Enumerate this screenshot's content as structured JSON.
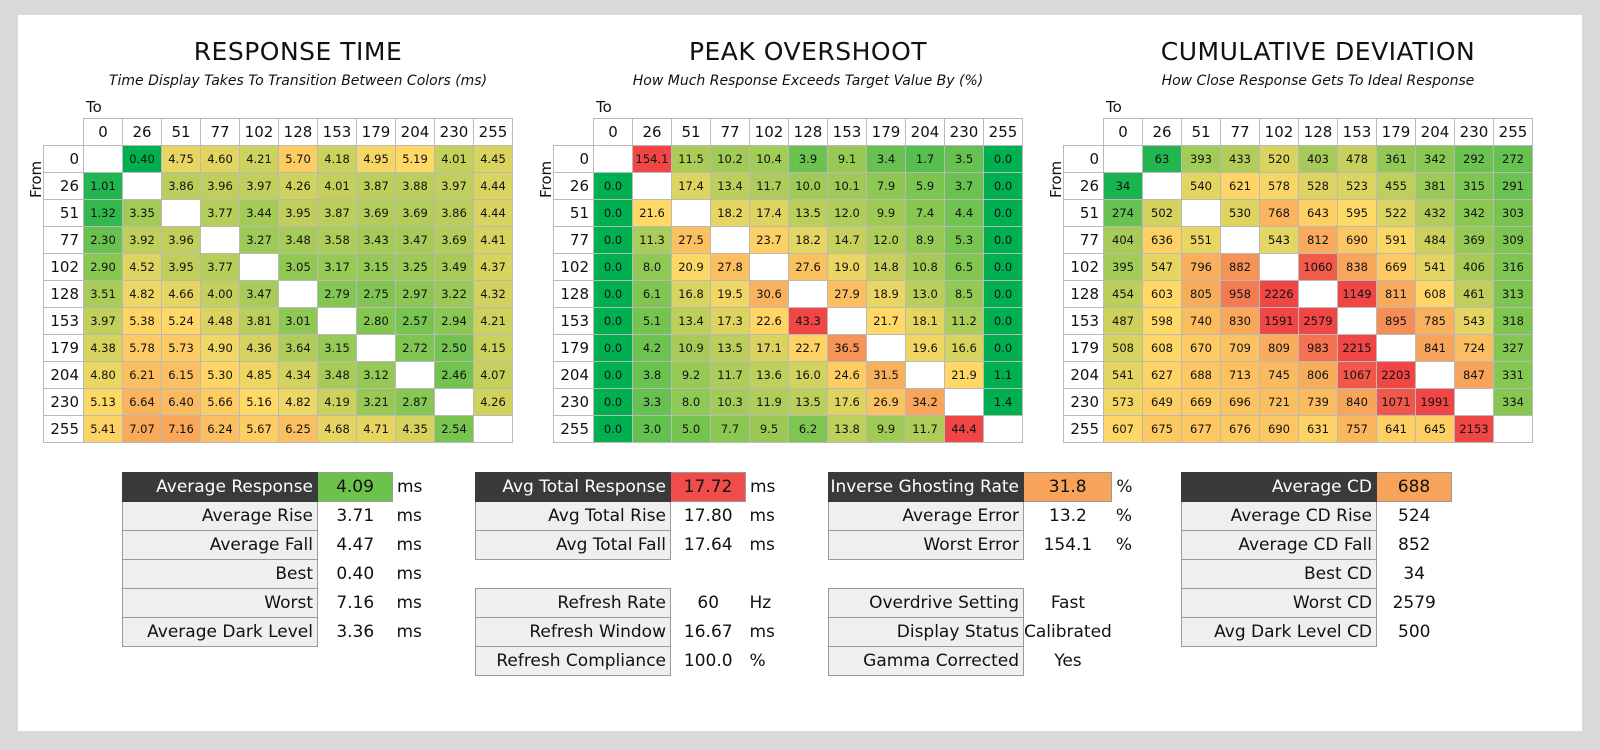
{
  "panels": [
    {
      "title": "RESPONSE TIME",
      "subtitle": "Time Display Takes To Transition Between Colors (ms)",
      "to_label": "To",
      "from_label": "From",
      "scale": "response",
      "lo": 0.4,
      "hi": 7.16,
      "levels": [
        "0",
        "26",
        "51",
        "77",
        "102",
        "128",
        "153",
        "179",
        "204",
        "230",
        "255"
      ],
      "rows": [
        [
          "",
          "0.40",
          "4.75",
          "4.60",
          "4.21",
          "5.70",
          "4.18",
          "4.95",
          "5.19",
          "4.01",
          "4.45"
        ],
        [
          "1.01",
          "",
          "3.86",
          "3.96",
          "3.97",
          "4.26",
          "4.01",
          "3.87",
          "3.88",
          "3.97",
          "4.44"
        ],
        [
          "1.32",
          "3.35",
          "",
          "3.77",
          "3.44",
          "3.95",
          "3.87",
          "3.69",
          "3.69",
          "3.86",
          "4.44"
        ],
        [
          "2.30",
          "3.92",
          "3.96",
          "",
          "3.27",
          "3.48",
          "3.58",
          "3.43",
          "3.47",
          "3.69",
          "4.41"
        ],
        [
          "2.90",
          "4.52",
          "3.95",
          "3.77",
          "",
          "3.05",
          "3.17",
          "3.15",
          "3.25",
          "3.49",
          "4.37"
        ],
        [
          "3.51",
          "4.82",
          "4.66",
          "4.00",
          "3.47",
          "",
          "2.79",
          "2.75",
          "2.97",
          "3.22",
          "4.32"
        ],
        [
          "3.97",
          "5.38",
          "5.24",
          "4.48",
          "3.81",
          "3.01",
          "",
          "2.80",
          "2.57",
          "2.94",
          "4.21"
        ],
        [
          "4.38",
          "5.78",
          "5.73",
          "4.90",
          "4.36",
          "3.64",
          "3.15",
          "",
          "2.72",
          "2.50",
          "4.15"
        ],
        [
          "4.80",
          "6.21",
          "6.15",
          "5.30",
          "4.85",
          "4.34",
          "3.48",
          "3.12",
          "",
          "2.46",
          "4.07"
        ],
        [
          "5.13",
          "6.64",
          "6.40",
          "5.66",
          "5.16",
          "4.82",
          "4.19",
          "3.21",
          "2.87",
          "",
          "4.26"
        ],
        [
          "5.41",
          "7.07",
          "7.16",
          "6.24",
          "5.67",
          "6.25",
          "4.68",
          "4.71",
          "4.35",
          "2.54",
          ""
        ]
      ]
    },
    {
      "title": "PEAK OVERSHOOT",
      "subtitle": "How Much Response Exceeds Target Value By (%)",
      "to_label": "To",
      "from_label": "From",
      "scale": "overshoot",
      "lo": 0,
      "hi": 44.4,
      "levels": [
        "0",
        "26",
        "51",
        "77",
        "102",
        "128",
        "153",
        "179",
        "204",
        "230",
        "255"
      ],
      "rows": [
        [
          "",
          "154.1",
          "11.5",
          "10.2",
          "10.4",
          "3.9",
          "9.1",
          "3.4",
          "1.7",
          "3.5",
          "0.0"
        ],
        [
          "0.0",
          "",
          "17.4",
          "13.4",
          "11.7",
          "10.0",
          "10.1",
          "7.9",
          "5.9",
          "3.7",
          "0.0"
        ],
        [
          "0.0",
          "21.6",
          "",
          "18.2",
          "17.4",
          "13.5",
          "12.0",
          "9.9",
          "7.4",
          "4.4",
          "0.0"
        ],
        [
          "0.0",
          "11.3",
          "27.5",
          "",
          "23.7",
          "18.2",
          "14.7",
          "12.0",
          "8.9",
          "5.3",
          "0.0"
        ],
        [
          "0.0",
          "8.0",
          "20.9",
          "27.8",
          "",
          "27.6",
          "19.0",
          "14.8",
          "10.8",
          "6.5",
          "0.0"
        ],
        [
          "0.0",
          "6.1",
          "16.8",
          "19.5",
          "30.6",
          "",
          "27.9",
          "18.9",
          "13.0",
          "8.5",
          "0.0"
        ],
        [
          "0.0",
          "5.1",
          "13.4",
          "17.3",
          "22.6",
          "43.3",
          "",
          "21.7",
          "18.1",
          "11.2",
          "0.0"
        ],
        [
          "0.0",
          "4.2",
          "10.9",
          "13.5",
          "17.1",
          "22.7",
          "36.5",
          "",
          "19.6",
          "16.6",
          "0.0"
        ],
        [
          "0.0",
          "3.8",
          "9.2",
          "11.7",
          "13.6",
          "16.0",
          "24.6",
          "31.5",
          "",
          "21.9",
          "1.1"
        ],
        [
          "0.0",
          "3.3",
          "8.0",
          "10.3",
          "11.9",
          "13.5",
          "17.6",
          "26.9",
          "34.2",
          "",
          "1.4"
        ],
        [
          "0.0",
          "3.0",
          "5.0",
          "7.7",
          "9.5",
          "6.2",
          "13.8",
          "9.9",
          "11.7",
          "44.4",
          ""
        ]
      ]
    },
    {
      "title": "CUMULATIVE DEVIATION",
      "subtitle": "How Close Response Gets To Ideal Response",
      "to_label": "To",
      "from_label": "From",
      "scale": "cd",
      "lo": 34,
      "hi": 2579,
      "levels": [
        "0",
        "26",
        "51",
        "77",
        "102",
        "128",
        "153",
        "179",
        "204",
        "230",
        "255"
      ],
      "rows": [
        [
          "",
          "63",
          "393",
          "433",
          "520",
          "403",
          "478",
          "361",
          "342",
          "292",
          "272"
        ],
        [
          "34",
          "",
          "540",
          "621",
          "578",
          "528",
          "523",
          "455",
          "381",
          "315",
          "291"
        ],
        [
          "274",
          "502",
          "",
          "530",
          "768",
          "643",
          "595",
          "522",
          "432",
          "342",
          "303"
        ],
        [
          "404",
          "636",
          "551",
          "",
          "543",
          "812",
          "690",
          "591",
          "484",
          "369",
          "309"
        ],
        [
          "395",
          "547",
          "796",
          "882",
          "",
          "1060",
          "838",
          "669",
          "541",
          "406",
          "316"
        ],
        [
          "454",
          "603",
          "805",
          "958",
          "2226",
          "",
          "1149",
          "811",
          "608",
          "461",
          "313"
        ],
        [
          "487",
          "598",
          "740",
          "830",
          "1591",
          "2579",
          "",
          "895",
          "785",
          "543",
          "318"
        ],
        [
          "508",
          "608",
          "670",
          "709",
          "809",
          "983",
          "2215",
          "",
          "841",
          "724",
          "327"
        ],
        [
          "541",
          "627",
          "688",
          "713",
          "745",
          "806",
          "1067",
          "2203",
          "",
          "847",
          "331"
        ],
        [
          "573",
          "649",
          "669",
          "696",
          "721",
          "739",
          "840",
          "1071",
          "1991",
          "",
          "334"
        ],
        [
          "607",
          "675",
          "677",
          "676",
          "690",
          "631",
          "757",
          "641",
          "645",
          "2153",
          ""
        ]
      ]
    }
  ],
  "stats": [
    {
      "rows": [
        {
          "label": "Average Response",
          "value": "4.09",
          "unit": "ms",
          "header": true,
          "color": "#6cc24a"
        },
        {
          "label": "Average Rise",
          "value": "3.71",
          "unit": "ms"
        },
        {
          "label": "Average Fall",
          "value": "4.47",
          "unit": "ms"
        },
        {
          "label": "Best",
          "value": "0.40",
          "unit": "ms"
        },
        {
          "label": "Worst",
          "value": "7.16",
          "unit": "ms"
        },
        {
          "label": "Average Dark Level",
          "value": "3.36",
          "unit": "ms"
        }
      ]
    },
    {
      "rows": [
        {
          "label": "Avg Total Response",
          "value": "17.72",
          "unit": "ms",
          "header": true,
          "color": "#f04c4c"
        },
        {
          "label": "Avg Total Rise",
          "value": "17.80",
          "unit": "ms"
        },
        {
          "label": "Avg Total Fall",
          "value": "17.64",
          "unit": "ms"
        },
        {
          "spacer": true
        },
        {
          "label": "Refresh Rate",
          "value": "60",
          "unit": "Hz"
        },
        {
          "label": "Refresh Window",
          "value": "16.67",
          "unit": "ms"
        },
        {
          "label": "Refresh Compliance",
          "value": "100.0",
          "unit": "%"
        }
      ]
    },
    {
      "rows": [
        {
          "label": "Inverse Ghosting Rate",
          "value": "31.8",
          "unit": "%",
          "header": true,
          "color": "#f7a35a"
        },
        {
          "label": "Average Error",
          "value": "13.2",
          "unit": "%"
        },
        {
          "label": "Worst Error",
          "value": "154.1",
          "unit": "%"
        },
        {
          "spacer": true
        },
        {
          "label": "Overdrive Setting",
          "value": "Fast",
          "unit": ""
        },
        {
          "label": "Display Status",
          "value": "Calibrated",
          "unit": ""
        },
        {
          "label": "Gamma Corrected",
          "value": "Yes",
          "unit": ""
        }
      ]
    },
    {
      "rows": [
        {
          "label": "Average CD",
          "value": "688",
          "unit": "",
          "header": true,
          "color": "#f7a35a"
        },
        {
          "label": "Average CD Rise",
          "value": "524",
          "unit": ""
        },
        {
          "label": "Average CD Fall",
          "value": "852",
          "unit": ""
        },
        {
          "label": "Best CD",
          "value": "34",
          "unit": ""
        },
        {
          "label": "Worst CD",
          "value": "2579",
          "unit": ""
        },
        {
          "label": "Avg Dark Level CD",
          "value": "500",
          "unit": ""
        }
      ]
    }
  ],
  "chart_data": [
    {
      "type": "heatmap",
      "title": "RESPONSE TIME",
      "subtitle": "Time Display Takes To Transition Between Colors (ms)",
      "xlabel": "To",
      "ylabel": "From",
      "x": [
        "0",
        "26",
        "51",
        "77",
        "102",
        "128",
        "153",
        "179",
        "204",
        "230",
        "255"
      ],
      "y": [
        "0",
        "26",
        "51",
        "77",
        "102",
        "128",
        "153",
        "179",
        "204",
        "230",
        "255"
      ],
      "values_ref": "panels.0.rows"
    },
    {
      "type": "heatmap",
      "title": "PEAK OVERSHOOT",
      "subtitle": "How Much Response Exceeds Target Value By (%)",
      "xlabel": "To",
      "ylabel": "From",
      "x": [
        "0",
        "26",
        "51",
        "77",
        "102",
        "128",
        "153",
        "179",
        "204",
        "230",
        "255"
      ],
      "y": [
        "0",
        "26",
        "51",
        "77",
        "102",
        "128",
        "153",
        "179",
        "204",
        "230",
        "255"
      ],
      "values_ref": "panels.1.rows"
    },
    {
      "type": "heatmap",
      "title": "CUMULATIVE DEVIATION",
      "subtitle": "How Close Response Gets To Ideal Response",
      "xlabel": "To",
      "ylabel": "From",
      "x": [
        "0",
        "26",
        "51",
        "77",
        "102",
        "128",
        "153",
        "179",
        "204",
        "230",
        "255"
      ],
      "y": [
        "0",
        "26",
        "51",
        "77",
        "102",
        "128",
        "153",
        "179",
        "204",
        "230",
        "255"
      ],
      "values_ref": "panels.2.rows"
    }
  ]
}
